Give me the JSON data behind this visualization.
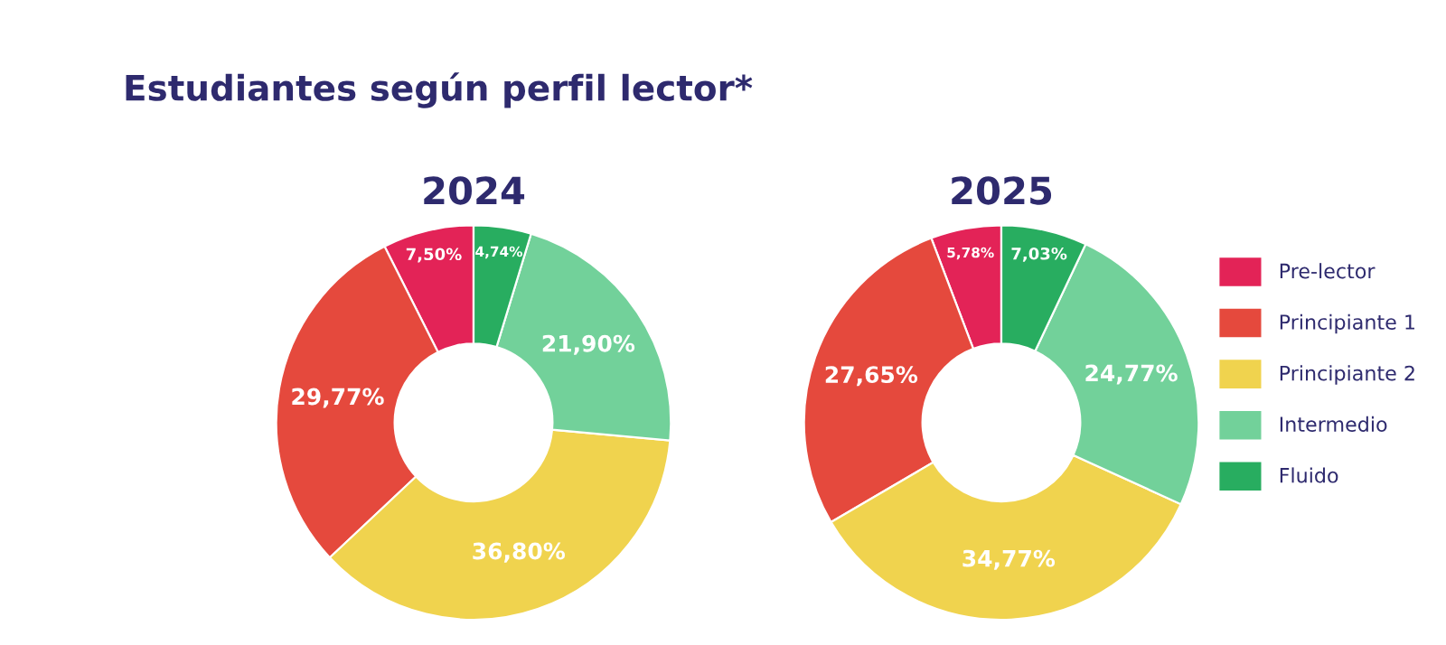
{
  "chart_data": [
    {
      "type": "donut",
      "title": "2024",
      "annotations": [
        "Estudiantes según perfil lector*"
      ],
      "categories": [
        "Pre-lector",
        "Principiante 1",
        "Principiante 2",
        "Intermedio",
        "Fluido"
      ],
      "values": [
        7.5,
        29.77,
        36.8,
        21.9,
        4.74
      ],
      "value_labels": [
        "7,50%",
        "29,77%",
        "36,80%",
        "21,90%",
        "4,74%"
      ],
      "colors": [
        "#e32357",
        "#e5493d",
        "#f0d34e",
        "#72d19a",
        "#28ad60"
      ],
      "legend": "right"
    },
    {
      "type": "donut",
      "title": "2025",
      "categories": [
        null,
        null,
        null,
        null,
        null
      ],
      "values": [
        5.78,
        27.65,
        34.77,
        24.77,
        7.03
      ],
      "value_labels": [
        "5,78%",
        "27,65%",
        "34,77%",
        "24,77%",
        "7,03%"
      ],
      "colors": [
        "#e32357",
        "#e5493d",
        "#f0d34e",
        "#72d19a",
        "#28ad60"
      ]
    }
  ]
}
